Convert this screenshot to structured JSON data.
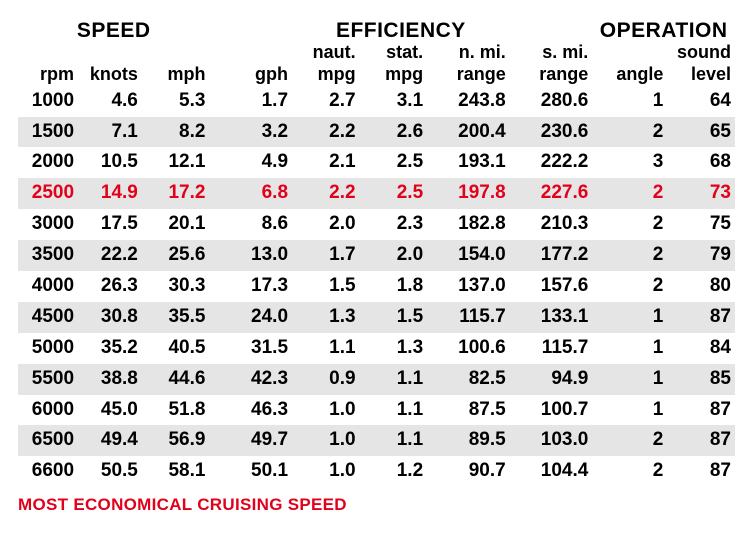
{
  "colors": {
    "highlight": "#e2001a",
    "stripe": "#e5e5e5",
    "text": "#000000",
    "background": "#ffffff"
  },
  "sections": {
    "speed": "SPEED",
    "efficiency": "EFFICIENCY",
    "operation": "OPERATION"
  },
  "headers_top": {
    "naut": "naut.",
    "stat": "stat.",
    "nmi": "n. mi.",
    "smi": "s. mi.",
    "sound": "sound"
  },
  "headers": {
    "rpm": "rpm",
    "knots": "knots",
    "mph": "mph",
    "gph": "gph",
    "nmpg": "mpg",
    "smpg": "mpg",
    "nrange": "range",
    "srange": "range",
    "angle": "angle",
    "level": "level"
  },
  "rows": [
    {
      "rpm": "1000",
      "knots": "4.6",
      "mph": "5.3",
      "gph": "1.7",
      "nmpg": "2.7",
      "smpg": "3.1",
      "nrange": "243.8",
      "srange": "280.6",
      "angle": "1",
      "level": "64",
      "highlight": false
    },
    {
      "rpm": "1500",
      "knots": "7.1",
      "mph": "8.2",
      "gph": "3.2",
      "nmpg": "2.2",
      "smpg": "2.6",
      "nrange": "200.4",
      "srange": "230.6",
      "angle": "2",
      "level": "65",
      "highlight": false
    },
    {
      "rpm": "2000",
      "knots": "10.5",
      "mph": "12.1",
      "gph": "4.9",
      "nmpg": "2.1",
      "smpg": "2.5",
      "nrange": "193.1",
      "srange": "222.2",
      "angle": "3",
      "level": "68",
      "highlight": false
    },
    {
      "rpm": "2500",
      "knots": "14.9",
      "mph": "17.2",
      "gph": "6.8",
      "nmpg": "2.2",
      "smpg": "2.5",
      "nrange": "197.8",
      "srange": "227.6",
      "angle": "2",
      "level": "73",
      "highlight": true
    },
    {
      "rpm": "3000",
      "knots": "17.5",
      "mph": "20.1",
      "gph": "8.6",
      "nmpg": "2.0",
      "smpg": "2.3",
      "nrange": "182.8",
      "srange": "210.3",
      "angle": "2",
      "level": "75",
      "highlight": false
    },
    {
      "rpm": "3500",
      "knots": "22.2",
      "mph": "25.6",
      "gph": "13.0",
      "nmpg": "1.7",
      "smpg": "2.0",
      "nrange": "154.0",
      "srange": "177.2",
      "angle": "2",
      "level": "79",
      "highlight": false
    },
    {
      "rpm": "4000",
      "knots": "26.3",
      "mph": "30.3",
      "gph": "17.3",
      "nmpg": "1.5",
      "smpg": "1.8",
      "nrange": "137.0",
      "srange": "157.6",
      "angle": "2",
      "level": "80",
      "highlight": false
    },
    {
      "rpm": "4500",
      "knots": "30.8",
      "mph": "35.5",
      "gph": "24.0",
      "nmpg": "1.3",
      "smpg": "1.5",
      "nrange": "115.7",
      "srange": "133.1",
      "angle": "1",
      "level": "87",
      "highlight": false
    },
    {
      "rpm": "5000",
      "knots": "35.2",
      "mph": "40.5",
      "gph": "31.5",
      "nmpg": "1.1",
      "smpg": "1.3",
      "nrange": "100.6",
      "srange": "115.7",
      "angle": "1",
      "level": "84",
      "highlight": false
    },
    {
      "rpm": "5500",
      "knots": "38.8",
      "mph": "44.6",
      "gph": "42.3",
      "nmpg": "0.9",
      "smpg": "1.1",
      "nrange": "82.5",
      "srange": "94.9",
      "angle": "1",
      "level": "85",
      "highlight": false
    },
    {
      "rpm": "6000",
      "knots": "45.0",
      "mph": "51.8",
      "gph": "46.3",
      "nmpg": "1.0",
      "smpg": "1.1",
      "nrange": "87.5",
      "srange": "100.7",
      "angle": "1",
      "level": "87",
      "highlight": false
    },
    {
      "rpm": "6500",
      "knots": "49.4",
      "mph": "56.9",
      "gph": "49.7",
      "nmpg": "1.0",
      "smpg": "1.1",
      "nrange": "89.5",
      "srange": "103.0",
      "angle": "2",
      "level": "87",
      "highlight": false
    },
    {
      "rpm": "6600",
      "knots": "50.5",
      "mph": "58.1",
      "gph": "50.1",
      "nmpg": "1.0",
      "smpg": "1.2",
      "nrange": "90.7",
      "srange": "104.4",
      "angle": "2",
      "level": "87",
      "highlight": false
    }
  ],
  "footnote": "MOST ECONOMICAL CRUISING SPEED"
}
